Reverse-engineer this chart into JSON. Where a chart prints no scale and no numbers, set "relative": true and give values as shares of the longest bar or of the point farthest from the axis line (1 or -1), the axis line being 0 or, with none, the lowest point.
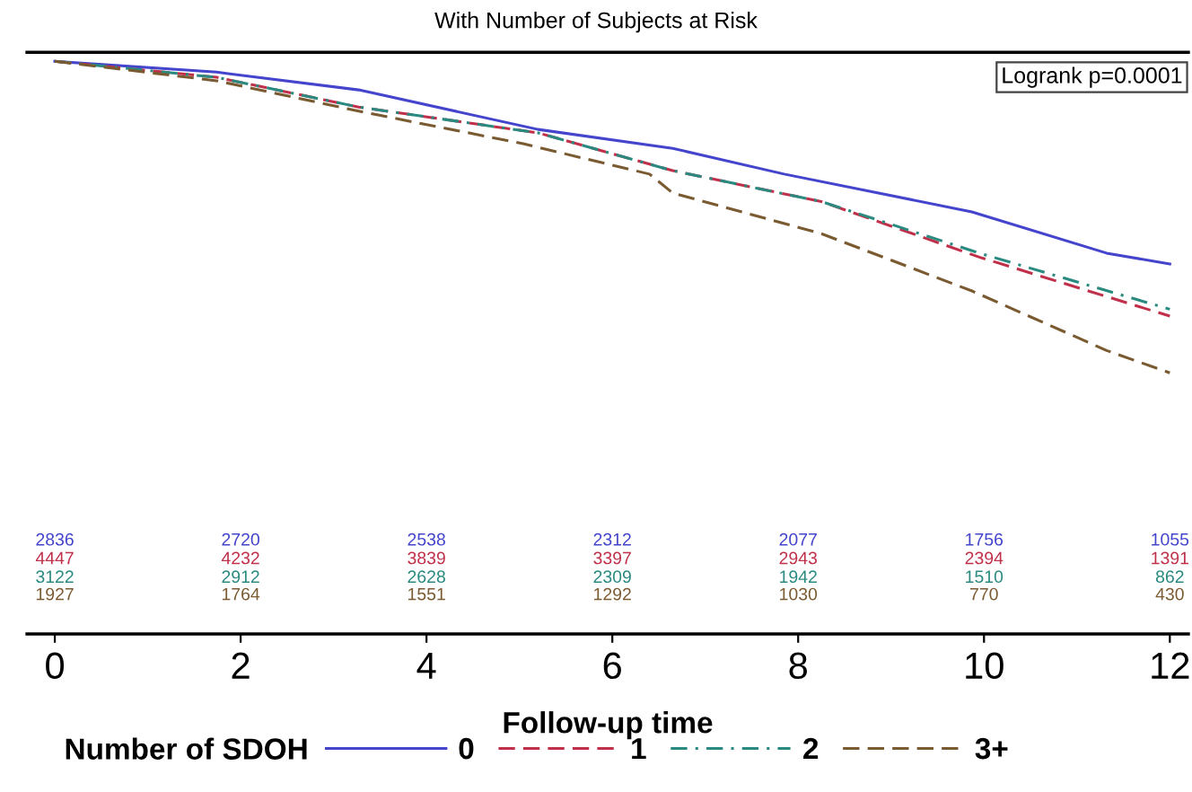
{
  "chart_data": {
    "type": "line",
    "subtitle": "With Number of Subjects at Risk",
    "xlabel": "Follow-up time",
    "legend_title": "Number of SDOH",
    "legend": "bottom",
    "relative": true,
    "grid": false,
    "xlim": [
      -0.3,
      12.2
    ],
    "xticks": [
      0,
      2,
      4,
      6,
      8,
      10,
      12
    ],
    "series": [
      {
        "name": "0",
        "color": "#4444cc",
        "line_style": "solid",
        "x": [
          0,
          1.74,
          3.27,
          5.2,
          6.65,
          7.85,
          9.87,
          11.32,
          12
        ],
        "values": [
          1.0,
          0.981,
          0.95,
          0.881,
          0.848,
          0.803,
          0.737,
          0.665,
          0.646
        ]
      },
      {
        "name": "1",
        "color": "#c0304a",
        "line_style": "dashed",
        "x": [
          0,
          1.74,
          3.27,
          5.2,
          6.65,
          8.25,
          9.95,
          12
        ],
        "values": [
          1.0,
          0.972,
          0.92,
          0.875,
          0.809,
          0.755,
          0.658,
          0.555
        ]
      },
      {
        "name": "2",
        "color": "#2a8a80",
        "line_style": "dashdot",
        "x": [
          0,
          1.74,
          3.27,
          5.2,
          6.65,
          8.25,
          9.95,
          12
        ],
        "values": [
          1.0,
          0.972,
          0.92,
          0.875,
          0.809,
          0.755,
          0.665,
          0.567
        ]
      },
      {
        "name": "3+",
        "color": "#7a5a30",
        "line_style": "dashed",
        "x": [
          0,
          1.74,
          3.27,
          5.04,
          6.4,
          6.65,
          8.25,
          9.87,
          11.32,
          12
        ],
        "values": [
          1.0,
          0.966,
          0.913,
          0.856,
          0.803,
          0.77,
          0.699,
          0.599,
          0.495,
          0.456
        ]
      }
    ],
    "annotations": [
      "Logrank p=0.0001",
      "2836",
      "2720",
      "2538",
      "2312",
      "2077",
      "1756",
      "1055",
      "4447",
      "4232",
      "3839",
      "3397",
      "2943",
      "2394",
      "1391",
      "3122",
      "2912",
      "2628",
      "2309",
      "1942",
      "1510",
      "862",
      "1927",
      "1764",
      "1551",
      "1292",
      "1030",
      "770",
      "430"
    ]
  }
}
